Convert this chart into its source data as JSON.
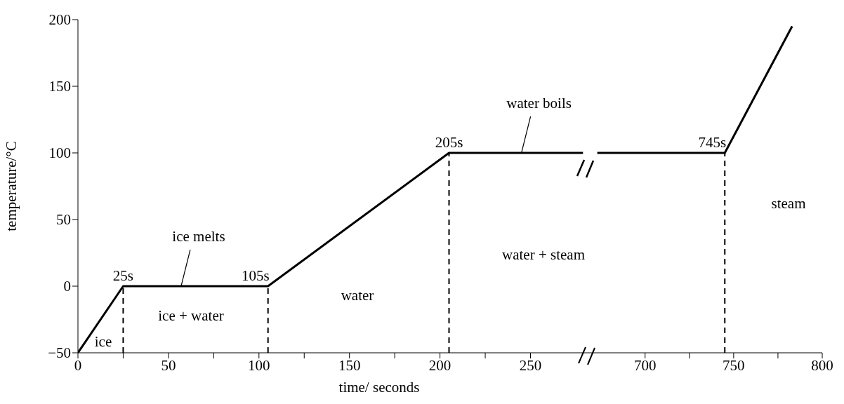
{
  "chart_data": [
    {
      "type": "line",
      "xlabel": "time/ seconds",
      "ylabel": "temperature/°C",
      "xlim": [
        0,
        282
      ],
      "ylim": [
        -50,
        200
      ],
      "xticks": [
        0,
        {
          "value": 25,
          "label": null
        },
        50,
        {
          "value": 75,
          "label": null
        },
        100,
        {
          "value": 125,
          "label": null
        },
        150,
        {
          "value": 175,
          "label": null
        },
        200,
        {
          "value": 225,
          "label": null
        },
        250
      ],
      "yticks": [
        -50,
        0,
        50,
        100,
        150,
        200
      ],
      "x": [
        0,
        25,
        105,
        205,
        279
      ],
      "series": [
        {
          "color": "#000000",
          "values": [
            -50,
            0,
            0,
            100,
            100
          ]
        }
      ],
      "marker": "none",
      "line_style": "solid",
      "ref_lines": [
        {
          "axis": "x",
          "value": 25,
          "color": "#000000",
          "line_style": "dashed"
        },
        {
          "axis": "x",
          "value": 105,
          "color": "#000000",
          "line_style": "dashed"
        },
        {
          "axis": "x",
          "value": 205,
          "color": "#000000",
          "line_style": "dashed"
        }
      ],
      "annotations": [
        {
          "text": "25s",
          "x": 25,
          "y": 0
        },
        {
          "text": "105s",
          "x": 105,
          "y": 0
        },
        {
          "text": "205s",
          "x": 205,
          "y": 100
        },
        {
          "text": "ice melts",
          "x": 57,
          "y": 0
        },
        {
          "text": "water boils",
          "x": 245,
          "y": 100
        },
        "ice",
        "ice + water",
        "water",
        "water + steam"
      ]
    },
    {
      "type": "line",
      "xlim": [
        668,
        800
      ],
      "ylim": [
        -50,
        200
      ],
      "tick_labels": "x",
      "xticks": [
        700,
        {
          "value": 725,
          "label": null
        },
        750,
        {
          "value": 775,
          "label": null
        },
        800
      ],
      "x": [
        673,
        745,
        783
      ],
      "series": [
        {
          "color": "#000000",
          "values": [
            100,
            100,
            195
          ]
        }
      ],
      "marker": "none",
      "line_style": "solid",
      "ref_lines": [
        {
          "axis": "x",
          "value": 745,
          "color": "#000000",
          "line_style": "dashed"
        }
      ],
      "annotations": [
        {
          "text": "745s",
          "x": 745,
          "y": 100
        },
        "steam"
      ]
    }
  ]
}
